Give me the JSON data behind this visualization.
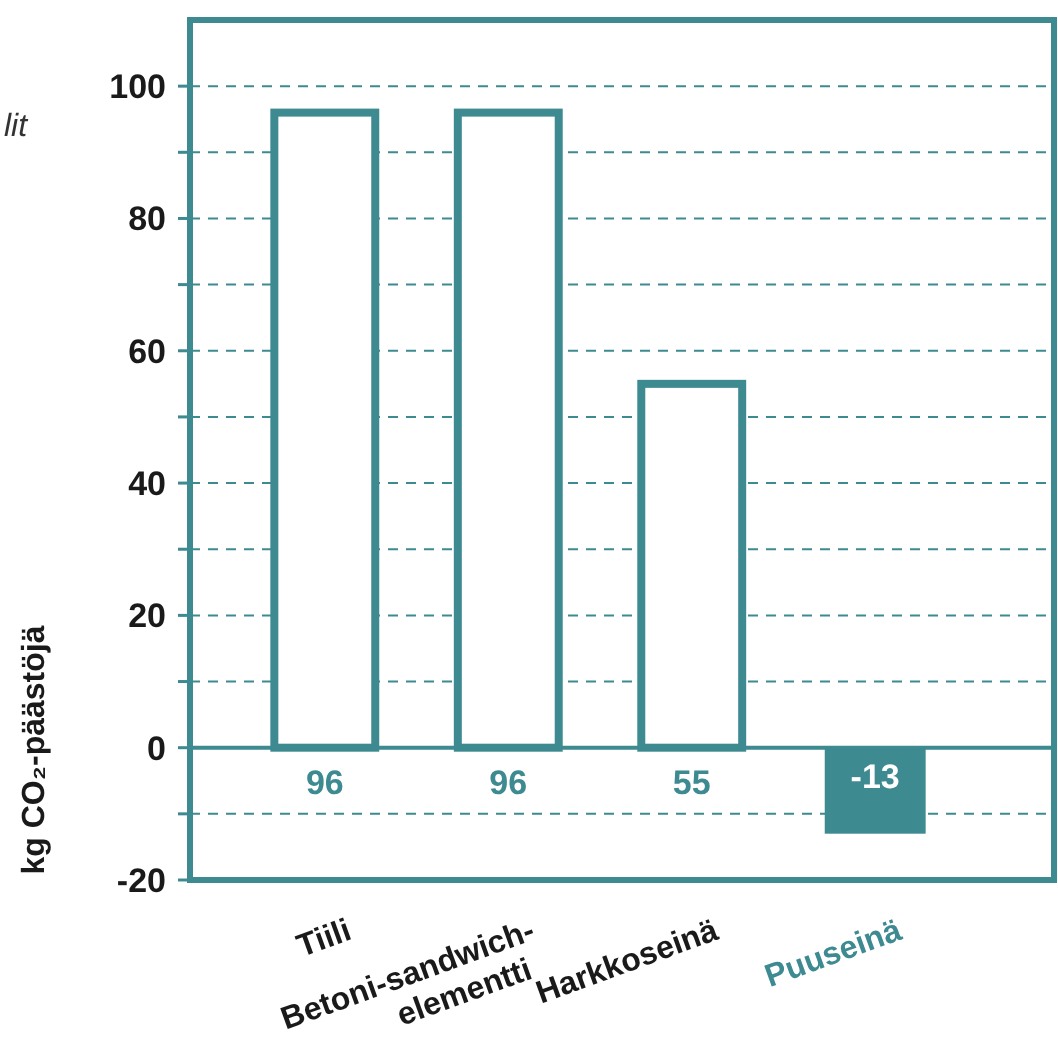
{
  "chart_data": {
    "type": "bar",
    "ylabel": "kg CO₂-päästöjä",
    "annotations": [
      "lit"
    ],
    "categories": [
      "Tiili",
      "Betoni-sandwich-elementti",
      "Harkkoseinä",
      "Puuseinä"
    ],
    "values": [
      96,
      96,
      55,
      -13
    ],
    "colors": [
      "#3d8a91",
      "#3d8a91",
      "#3d8a91",
      "#3d8a91"
    ],
    "data_labels": true,
    "ylim": [
      -20,
      110
    ],
    "yticks": [
      -20,
      {
        "value": -10,
        "label": null
      },
      0,
      {
        "value": 10,
        "label": null
      },
      20,
      {
        "value": 30,
        "label": null
      },
      40,
      {
        "value": 50,
        "label": null
      },
      60,
      {
        "value": 70,
        "label": null
      },
      80,
      {
        "value": 90,
        "label": null
      },
      100
    ],
    "ref_lines": [
      {
        "axis": "y",
        "value": 0,
        "color": "#3d8a91"
      }
    ],
    "grid": "y"
  }
}
